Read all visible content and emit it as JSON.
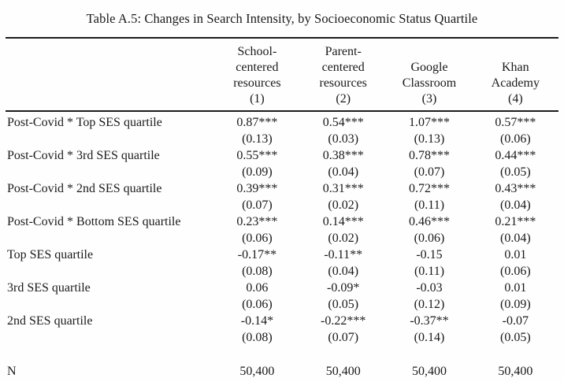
{
  "page": {
    "title": "Table A.5: Changes in Search Intensity, by Socioeconomic Status Quartile"
  },
  "table": {
    "columns": [
      {
        "lines": [
          "School-",
          "centered",
          "resources"
        ],
        "number": "(1)"
      },
      {
        "lines": [
          "Parent-",
          "centered",
          "resources"
        ],
        "number": "(2)"
      },
      {
        "lines": [
          "Google",
          "Classroom"
        ],
        "number": "(3)"
      },
      {
        "lines": [
          "Khan",
          "Academy"
        ],
        "number": "(4)"
      }
    ],
    "rows": [
      {
        "label": "Post-Covid * Top SES quartile",
        "coefficients": [
          "0.87***",
          "0.54***",
          "1.07***",
          "0.57***"
        ],
        "std_errors": [
          "(0.13)",
          "(0.03)",
          "(0.13)",
          "(0.06)"
        ]
      },
      {
        "label": "Post-Covid * 3rd SES quartile",
        "coefficients": [
          "0.55***",
          "0.38***",
          "0.78***",
          "0.44***"
        ],
        "std_errors": [
          "(0.09)",
          "(0.04)",
          "(0.07)",
          "(0.05)"
        ]
      },
      {
        "label": "Post-Covid * 2nd SES quartile",
        "coefficients": [
          "0.39***",
          "0.31***",
          "0.72***",
          "0.43***"
        ],
        "std_errors": [
          "(0.07)",
          "(0.02)",
          "(0.11)",
          "(0.04)"
        ]
      },
      {
        "label": "Post-Covid * Bottom SES quartile",
        "coefficients": [
          "0.23***",
          "0.14***",
          "0.46***",
          "0.21***"
        ],
        "std_errors": [
          "(0.06)",
          "(0.02)",
          "(0.06)",
          "(0.04)"
        ]
      },
      {
        "label": "Top SES quartile",
        "coefficients": [
          "-0.17**",
          "-0.11**",
          "-0.15",
          "0.01"
        ],
        "std_errors": [
          "(0.08)",
          "(0.04)",
          "(0.11)",
          "(0.06)"
        ]
      },
      {
        "label": "3rd SES quartile",
        "coefficients": [
          "0.06",
          "-0.09*",
          "-0.03",
          "0.01"
        ],
        "std_errors": [
          "(0.06)",
          "(0.05)",
          "(0.12)",
          "(0.09)"
        ]
      },
      {
        "label": "2nd SES quartile",
        "coefficients": [
          "-0.14*",
          "-0.22***",
          "-0.37**",
          "-0.07"
        ],
        "std_errors": [
          "(0.08)",
          "(0.07)",
          "(0.14)",
          "(0.05)"
        ]
      }
    ],
    "observations": {
      "label": "N",
      "values": [
        "50,400",
        "50,400",
        "50,400",
        "50,400"
      ]
    }
  },
  "colors": {
    "text": "#1a1a1a",
    "rule": "#1c1c1c",
    "background": "#fefefe"
  }
}
